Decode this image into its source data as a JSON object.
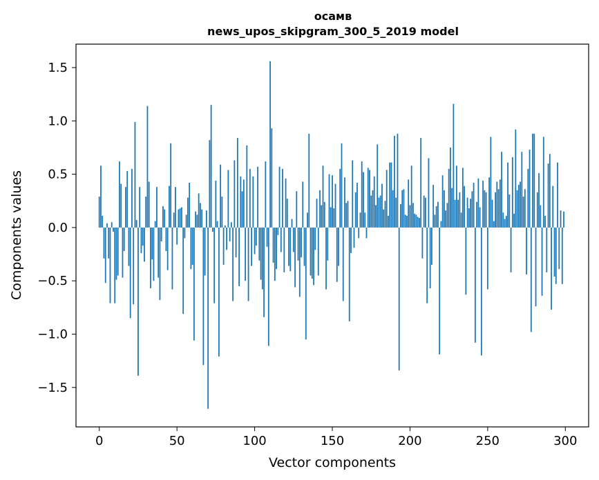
{
  "chart_data": {
    "type": "bar",
    "title_line1": "осамв",
    "title_line2": "news_upos_skipgram_300_5_2019 model",
    "xlabel": "Vector components",
    "ylabel": "Components values",
    "xlim": [
      -15,
      315
    ],
    "ylim": [
      -1.87,
      1.72
    ],
    "xticks": [
      0,
      50,
      100,
      150,
      200,
      250,
      300
    ],
    "xtick_labels": [
      "0",
      "50",
      "100",
      "150",
      "200",
      "250",
      "300"
    ],
    "yticks": [
      -1.5,
      -1.0,
      -0.5,
      0.0,
      0.5,
      1.0,
      1.5
    ],
    "ytick_labels": [
      "−1.5",
      "−1.0",
      "−0.5",
      "0.0",
      "0.5",
      "1.0",
      "1.5"
    ],
    "color": "#1f77b4",
    "values": [
      0.29,
      0.58,
      0.11,
      -0.29,
      -0.52,
      0.04,
      -0.29,
      -0.71,
      0.05,
      -0.04,
      -0.71,
      -0.49,
      -0.45,
      0.62,
      0.41,
      -0.47,
      -0.22,
      0.38,
      0.53,
      -0.36,
      -0.85,
      0.55,
      -0.72,
      0.99,
      0.07,
      -1.39,
      0.38,
      -0.24,
      -0.17,
      -0.32,
      0.29,
      1.14,
      0.43,
      -0.57,
      -0.3,
      -0.5,
      0.06,
      0.38,
      -0.47,
      -0.68,
      -0.13,
      0.2,
      0.17,
      -0.22,
      -0.4,
      0.39,
      0.79,
      -0.58,
      0.14,
      0.38,
      -0.16,
      0.17,
      0.18,
      0.19,
      -0.81,
      -0.1,
      0.12,
      0.28,
      0.42,
      -0.39,
      -0.35,
      -1.06,
      0.15,
      0.12,
      0.32,
      0.23,
      0.17,
      -1.29,
      -0.45,
      0.16,
      -1.7,
      0.82,
      1.15,
      -0.04,
      -0.71,
      0.44,
      0.06,
      -1.21,
      0.59,
      0.29,
      -0.35,
      0.02,
      -0.21,
      0.54,
      -0.13,
      0.05,
      -0.69,
      0.63,
      -0.28,
      0.84,
      -0.55,
      0.48,
      0.34,
      0.45,
      -0.5,
      0.77,
      -0.69,
      0.55,
      -0.36,
      0.48,
      -0.25,
      -0.17,
      0.57,
      -0.31,
      -0.49,
      -0.58,
      -0.84,
      0.62,
      -0.18,
      -1.11,
      1.56,
      0.93,
      -0.33,
      -0.5,
      -0.39,
      -0.07,
      0.57,
      -0.23,
      0.55,
      -0.42,
      0.46,
      0.27,
      -0.36,
      -0.41,
      0.08,
      -0.23,
      -0.56,
      0.34,
      -0.31,
      -0.65,
      -0.28,
      0.43,
      -0.36,
      -1.05,
      0.14,
      0.88,
      -0.45,
      -0.48,
      -0.54,
      -0.21,
      0.27,
      -0.45,
      0.35,
      0.21,
      0.58,
      0.24,
      -0.58,
      -0.31,
      0.5,
      0.19,
      0.49,
      0.18,
      0.41,
      -0.51,
      -0.36,
      0.55,
      0.79,
      -0.69,
      0.47,
      0.23,
      0.25,
      -0.88,
      -0.24,
      0.63,
      -0.19,
      0.33,
      0.42,
      -0.1,
      0.14,
      0.62,
      0.52,
      0.14,
      -0.1,
      0.56,
      0.54,
      0.3,
      0.35,
      0.48,
      0.21,
      0.78,
      0.28,
      0.3,
      0.41,
      0.17,
      0.25,
      0.54,
      0.11,
      0.61,
      0.61,
      0.35,
      0.86,
      0.28,
      0.88,
      -1.34,
      0.22,
      0.35,
      0.36,
      0.12,
      0.11,
      0.45,
      0.21,
      0.58,
      0.23,
      0.13,
      0.12,
      0.1,
      0.09,
      0.84,
      -0.29,
      0.3,
      0.28,
      -0.71,
      0.65,
      -0.57,
      -0.35,
      0.4,
      0.12,
      0.2,
      0.24,
      -1.19,
      0.06,
      0.49,
      0.35,
      0.16,
      0.23,
      0.55,
      0.75,
      0.37,
      1.16,
      0.26,
      0.58,
      0.26,
      0.33,
      0.14,
      0.56,
      0.39,
      -0.63,
      0.28,
      0.18,
      0.27,
      0.34,
      0.42,
      -1.08,
      0.24,
      0.46,
      0.19,
      -1.2,
      0.44,
      0.35,
      0.33,
      -0.58,
      0.47,
      0.85,
      0.26,
      0.06,
      0.33,
      0.43,
      0.36,
      0.45,
      0.71,
      0.14,
      0.08,
      0.11,
      0.61,
      0.31,
      -0.42,
      0.66,
      0.13,
      0.92,
      0.35,
      0.4,
      0.43,
      0.71,
      0.29,
      0.36,
      -0.44,
      0.55,
      0.73,
      -0.98,
      0.88,
      0.88,
      -0.74,
      0.33,
      0.51,
      0.21,
      -0.64,
      0.85,
      0.11,
      -0.42,
      0.6,
      0.69,
      -0.77,
      0.39,
      -0.46,
      -0.53,
      0.61,
      -0.39,
      0.16,
      -0.53,
      0.15
    ]
  }
}
